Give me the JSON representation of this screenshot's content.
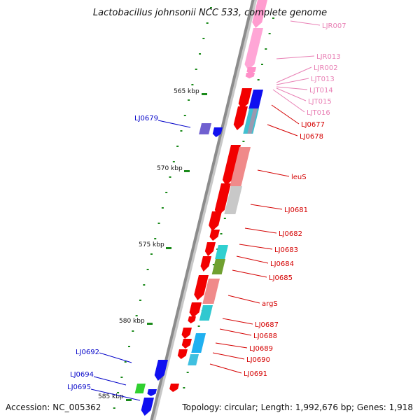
{
  "title": "Lactobacillus johnsonii NCC 533, complete genome",
  "accession": "Accession: NC_005362",
  "topology": "Topology: circular; Length: 1,992,676 bp; Genes: 1,918",
  "kbp_ticks": [
    "565 kbp",
    "570 kbp",
    "575 kbp",
    "580 kbp",
    "585 kbp"
  ],
  "colors": {
    "backbone": "#8c8c8c",
    "rna_label": "#e87fb4",
    "gene_label": "#d40000",
    "left_label": "#0000c8",
    "tick": "#1a8a1a"
  },
  "right_labels": [
    {
      "text": "LJR007",
      "kind": "rna"
    },
    {
      "text": "LJR013",
      "kind": "rna"
    },
    {
      "text": "LJR002",
      "kind": "rna"
    },
    {
      "text": "LJT013",
      "kind": "rna"
    },
    {
      "text": "LJT014",
      "kind": "rna"
    },
    {
      "text": "LJT015",
      "kind": "rna"
    },
    {
      "text": "LJT016",
      "kind": "rna"
    },
    {
      "text": "LJ0677",
      "kind": "gene"
    },
    {
      "text": "LJ0678",
      "kind": "gene"
    },
    {
      "text": "leuS",
      "kind": "gene"
    },
    {
      "text": "LJ0681",
      "kind": "gene"
    },
    {
      "text": "LJ0682",
      "kind": "gene"
    },
    {
      "text": "LJ0683",
      "kind": "gene"
    },
    {
      "text": "LJ0684",
      "kind": "gene"
    },
    {
      "text": "LJ0685",
      "kind": "gene"
    },
    {
      "text": "argS",
      "kind": "gene"
    },
    {
      "text": "LJ0687",
      "kind": "gene"
    },
    {
      "text": "LJ0688",
      "kind": "gene"
    },
    {
      "text": "LJ0689",
      "kind": "gene"
    },
    {
      "text": "LJ0690",
      "kind": "gene"
    },
    {
      "text": "LJ0691",
      "kind": "gene"
    }
  ],
  "left_labels": [
    "LJ0679",
    "LJ0692",
    "LJ0694",
    "LJ0695"
  ]
}
